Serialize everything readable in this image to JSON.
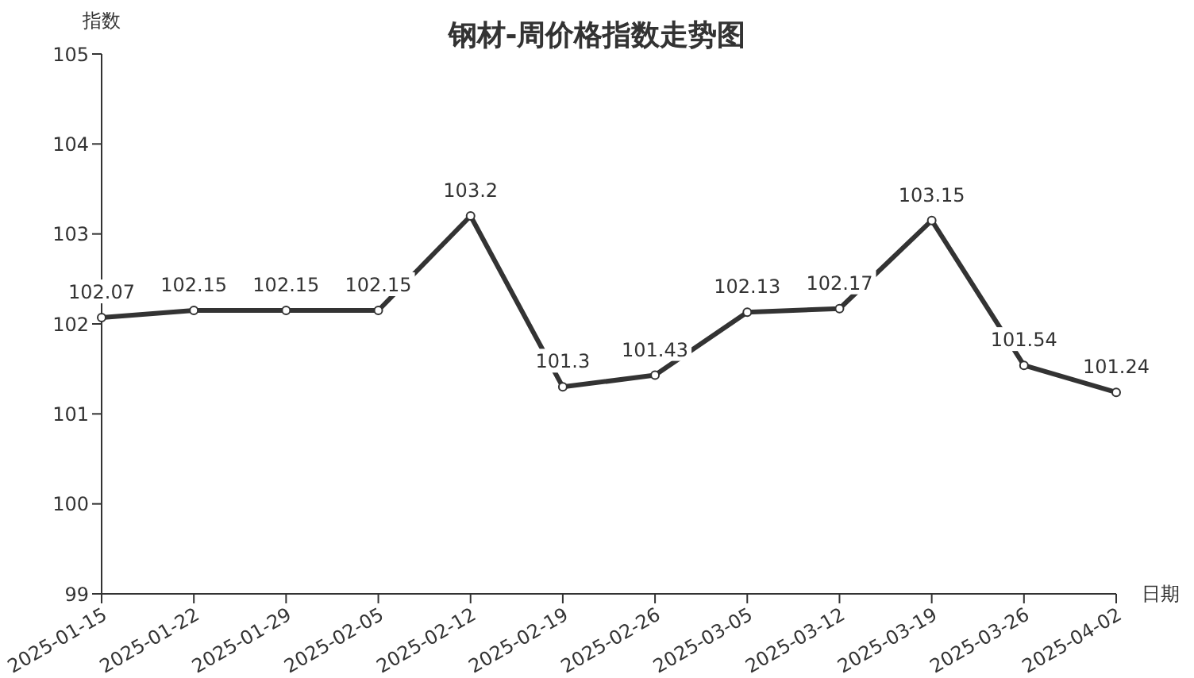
{
  "chart_data": {
    "type": "line",
    "title": "钢材-周价格指数走势图",
    "ylabel": "指数",
    "xlabel": "日期",
    "categories": [
      "2025-01-15",
      "2025-01-22",
      "2025-01-29",
      "2025-02-05",
      "2025-02-12",
      "2025-02-19",
      "2025-02-26",
      "2025-03-05",
      "2025-03-12",
      "2025-03-19",
      "2025-03-26",
      "2025-04-02"
    ],
    "series": [
      {
        "color": "#333333",
        "values": [
          102.07,
          102.15,
          102.15,
          102.15,
          103.2,
          101.3,
          101.43,
          102.13,
          102.17,
          103.15,
          101.54,
          101.24
        ]
      }
    ],
    "ylim": [
      99,
      105
    ],
    "yticks": [
      99,
      100,
      101,
      102,
      103,
      104,
      105
    ],
    "grid": false,
    "legend": false,
    "marker": "circle",
    "line_style": "solid",
    "data_labels": true
  }
}
